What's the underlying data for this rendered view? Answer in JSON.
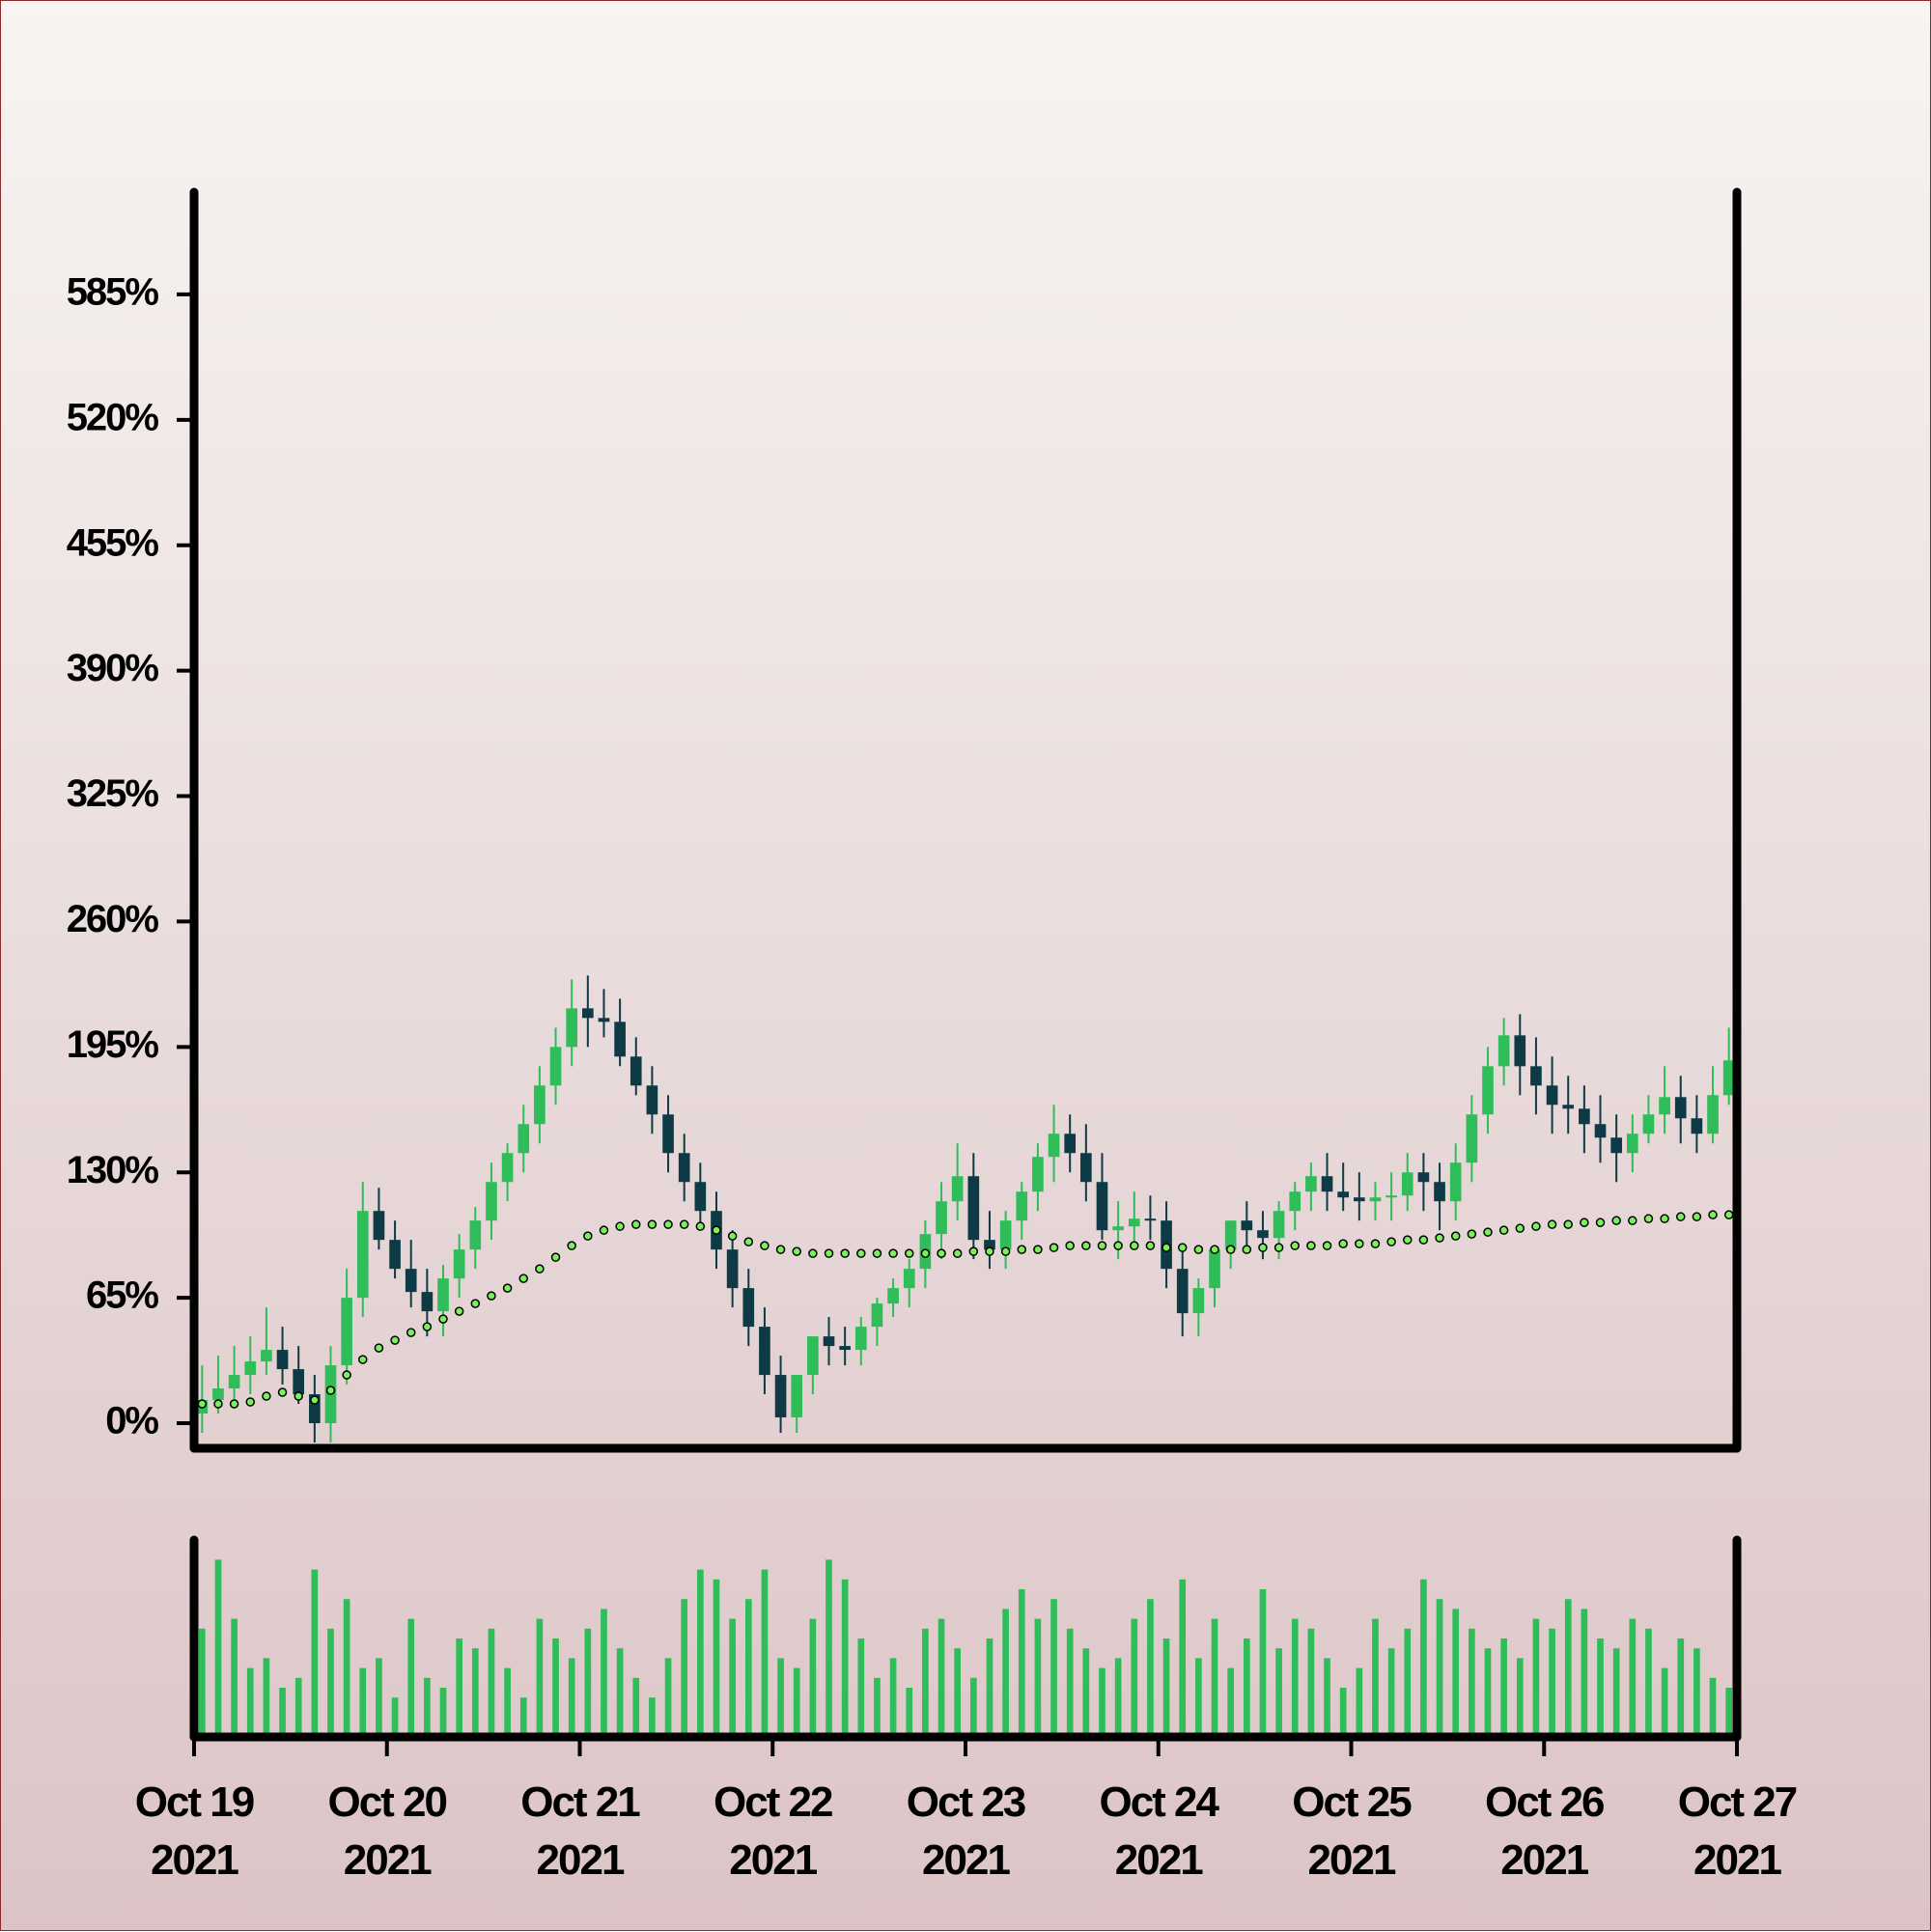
{
  "chart_data": {
    "type": "candlestick",
    "xlim": [
      "2021-10-19",
      "2021-10-27"
    ],
    "xticks": [
      {
        "value": "2021-10-19",
        "label": "Oct 19\n2021"
      },
      {
        "value": "2021-10-20",
        "label": "Oct 20\n2021"
      },
      {
        "value": "2021-10-21",
        "label": "Oct 21\n2021"
      },
      {
        "value": "2021-10-22",
        "label": "Oct 22\n2021"
      },
      {
        "value": "2021-10-23",
        "label": "Oct 23\n2021"
      },
      {
        "value": "2021-10-24",
        "label": "Oct 24\n2021"
      },
      {
        "value": "2021-10-25",
        "label": "Oct 25\n2021"
      },
      {
        "value": "2021-10-26",
        "label": "Oct 26\n2021"
      },
      {
        "value": "2021-10-27",
        "label": "Oct 27\n2021"
      }
    ],
    "ylim": [
      -13,
      638
    ],
    "yticks": [
      {
        "value": 0,
        "label": "0%"
      },
      {
        "value": 65,
        "label": "65%"
      },
      {
        "value": 130,
        "label": "130%"
      },
      {
        "value": 195,
        "label": "195%"
      },
      {
        "value": 260,
        "label": "260%"
      },
      {
        "value": 325,
        "label": "325%"
      },
      {
        "value": 390,
        "label": "390%"
      },
      {
        "value": 455,
        "label": "455%"
      },
      {
        "value": 520,
        "label": "520%"
      },
      {
        "value": 585,
        "label": "585%"
      }
    ],
    "up_color": "#2ebd59",
    "down_color": "#0d3a45",
    "open": [
      5,
      12,
      18,
      25,
      32,
      38,
      28,
      15,
      0,
      30,
      65,
      110,
      95,
      80,
      68,
      58,
      75,
      90,
      105,
      125,
      140,
      155,
      175,
      195,
      215,
      210,
      208,
      190,
      175,
      160,
      140,
      125,
      110,
      90,
      70,
      50,
      25,
      3,
      25,
      45,
      40,
      38,
      50,
      62,
      70,
      80,
      98,
      115,
      128,
      95,
      90,
      105,
      120,
      138,
      150,
      140,
      125,
      100,
      102,
      106,
      105,
      80,
      57,
      70,
      90,
      105,
      100,
      96,
      110,
      120,
      128,
      120,
      117,
      115,
      117,
      118,
      130,
      125,
      115,
      135,
      160,
      185,
      201,
      185,
      175,
      165,
      163,
      155,
      148,
      140,
      150,
      160,
      169,
      158,
      150,
      170
    ],
    "high": [
      30,
      35,
      40,
      45,
      60,
      50,
      40,
      25,
      40,
      80,
      125,
      122,
      105,
      95,
      80,
      82,
      98,
      112,
      135,
      145,
      165,
      185,
      205,
      230,
      232,
      225,
      220,
      200,
      185,
      170,
      150,
      135,
      120,
      100,
      80,
      60,
      35,
      20,
      40,
      55,
      50,
      55,
      65,
      75,
      85,
      105,
      125,
      145,
      140,
      110,
      110,
      125,
      145,
      165,
      160,
      155,
      140,
      115,
      120,
      118,
      115,
      90,
      75,
      90,
      100,
      115,
      110,
      115,
      125,
      135,
      140,
      135,
      130,
      125,
      130,
      140,
      140,
      135,
      145,
      170,
      195,
      210,
      212,
      200,
      190,
      180,
      175,
      170,
      160,
      160,
      170,
      185,
      180,
      170,
      185,
      205
    ],
    "low": [
      -5,
      5,
      10,
      15,
      25,
      20,
      10,
      -10,
      -10,
      20,
      55,
      90,
      75,
      60,
      45,
      45,
      65,
      80,
      95,
      115,
      130,
      145,
      165,
      185,
      195,
      200,
      185,
      170,
      150,
      130,
      115,
      100,
      80,
      60,
      40,
      15,
      -5,
      -5,
      15,
      30,
      30,
      30,
      40,
      55,
      60,
      70,
      85,
      105,
      85,
      80,
      80,
      95,
      110,
      125,
      130,
      115,
      95,
      85,
      90,
      95,
      70,
      45,
      45,
      60,
      80,
      90,
      85,
      85,
      100,
      110,
      110,
      110,
      105,
      105,
      105,
      110,
      110,
      100,
      105,
      125,
      150,
      175,
      170,
      160,
      150,
      150,
      140,
      135,
      125,
      130,
      145,
      150,
      145,
      140,
      145,
      165
    ],
    "close": [
      12,
      18,
      25,
      32,
      38,
      28,
      15,
      0,
      30,
      65,
      110,
      95,
      80,
      68,
      58,
      75,
      90,
      105,
      125,
      140,
      155,
      175,
      195,
      215,
      210,
      208,
      190,
      175,
      160,
      140,
      125,
      110,
      90,
      70,
      50,
      25,
      3,
      25,
      45,
      40,
      38,
      50,
      62,
      70,
      80,
      98,
      115,
      128,
      95,
      90,
      105,
      120,
      138,
      150,
      140,
      125,
      100,
      102,
      106,
      105,
      80,
      57,
      70,
      90,
      105,
      100,
      96,
      110,
      120,
      128,
      120,
      117,
      115,
      117,
      118,
      130,
      125,
      115,
      135,
      160,
      185,
      201,
      185,
      175,
      165,
      163,
      155,
      148,
      140,
      150,
      160,
      169,
      158,
      150,
      170,
      188
    ],
    "ma": {
      "color": "#7cf05a",
      "values": [
        10,
        10,
        10,
        11,
        14,
        16,
        14,
        12,
        17,
        25,
        33,
        39,
        43,
        47,
        50,
        54,
        58,
        62,
        66,
        70,
        75,
        80,
        86,
        92,
        97,
        100,
        102,
        103,
        103,
        103,
        103,
        102,
        100,
        97,
        94,
        92,
        90,
        89,
        88,
        88,
        88,
        88,
        88,
        88,
        88,
        88,
        88,
        88,
        89,
        89,
        89,
        90,
        90,
        91,
        92,
        92,
        92,
        92,
        92,
        92,
        91,
        91,
        90,
        90,
        90,
        90,
        91,
        91,
        92,
        92,
        92,
        93,
        93,
        93,
        94,
        95,
        95,
        96,
        97,
        98,
        99,
        100,
        101,
        102,
        103,
        103,
        104,
        104,
        105,
        105,
        106,
        106,
        107,
        107,
        108,
        108
      ]
    },
    "volume": {
      "color": "#2ebd59",
      "ylim": [
        0,
        100
      ],
      "values": [
        55,
        90,
        60,
        35,
        40,
        25,
        30,
        85,
        55,
        70,
        35,
        40,
        20,
        60,
        30,
        25,
        50,
        45,
        55,
        35,
        20,
        60,
        50,
        40,
        55,
        65,
        45,
        30,
        20,
        40,
        70,
        85,
        80,
        60,
        70,
        85,
        40,
        35,
        60,
        90,
        80,
        50,
        30,
        40,
        25,
        55,
        60,
        45,
        30,
        50,
        65,
        75,
        60,
        70,
        55,
        45,
        35,
        40,
        60,
        70,
        50,
        80,
        40,
        60,
        35,
        50,
        75,
        45,
        60,
        55,
        40,
        25,
        35,
        60,
        45,
        55,
        80,
        70,
        65,
        55,
        45,
        50,
        40,
        60,
        55,
        70,
        65,
        50,
        45,
        60,
        55,
        35,
        50,
        45,
        30,
        25
      ]
    }
  }
}
